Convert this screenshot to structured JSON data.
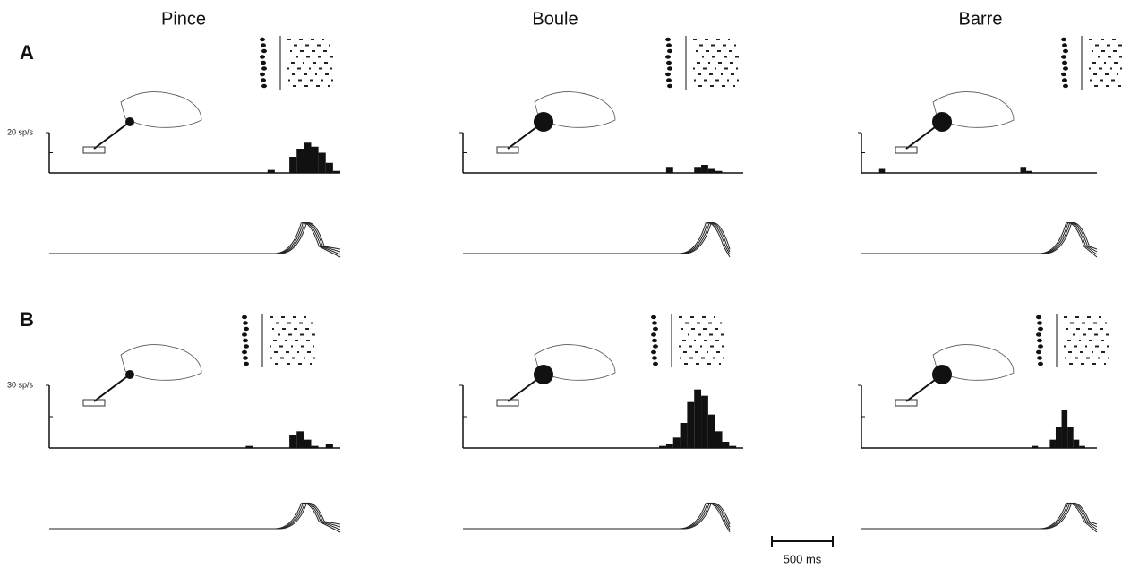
{
  "columns": [
    "Pince",
    "Boule",
    "Barre"
  ],
  "rows": [
    {
      "label": "A",
      "scale": {
        "value": 20,
        "label": "20 sp/s"
      },
      "histograms": [
        [
          0,
          0,
          0,
          0,
          0,
          0,
          0,
          0,
          0,
          0,
          0,
          0,
          0,
          0,
          0,
          0,
          0,
          0,
          0,
          0,
          0,
          0,
          0,
          0,
          0,
          0,
          0,
          0,
          0,
          0,
          1.5,
          0,
          0,
          8,
          12,
          15,
          13,
          10,
          5,
          1
        ],
        [
          0,
          0,
          0,
          0,
          0,
          0,
          0,
          0,
          0,
          0,
          0,
          0,
          0,
          0,
          0,
          0,
          0,
          0,
          0,
          0,
          0,
          0,
          0,
          0,
          0,
          0,
          0,
          0,
          0,
          3,
          0,
          0,
          0,
          3,
          4,
          2,
          1,
          0,
          0,
          0
        ],
        [
          0,
          0,
          0,
          2,
          0,
          0,
          0,
          0,
          0,
          0,
          0,
          0,
          0,
          0,
          0,
          0,
          0,
          0,
          0,
          0,
          0,
          0,
          0,
          0,
          0,
          0,
          0,
          3,
          1,
          0,
          0,
          0,
          0,
          0,
          0,
          0,
          0,
          0,
          0,
          0
        ]
      ]
    },
    {
      "label": "B",
      "scale": {
        "value": 30,
        "label": "30 sp/s"
      },
      "histograms": [
        [
          0,
          0,
          0,
          0,
          0,
          0,
          0,
          0,
          0,
          0,
          0,
          0,
          0,
          0,
          0,
          0,
          0,
          0,
          0,
          0,
          0,
          0,
          0,
          0,
          0,
          0,
          0,
          1,
          0,
          0,
          0,
          0,
          0,
          6,
          8,
          4,
          1,
          0,
          2,
          0
        ],
        [
          0,
          0,
          0,
          0,
          0,
          0,
          0,
          0,
          0,
          0,
          0,
          0,
          0,
          0,
          0,
          0,
          0,
          0,
          0,
          0,
          0,
          0,
          0,
          0,
          0,
          0,
          0,
          0,
          1,
          2,
          5,
          12,
          22,
          28,
          25,
          16,
          8,
          3,
          1,
          0
        ],
        [
          0,
          0,
          0,
          0,
          0,
          0,
          0,
          0,
          0,
          0,
          0,
          0,
          0,
          0,
          0,
          0,
          0,
          0,
          0,
          0,
          0,
          0,
          0,
          0,
          0,
          0,
          0,
          0,
          0,
          1,
          0,
          0,
          4,
          10,
          18,
          10,
          4,
          1,
          0,
          0
        ]
      ]
    }
  ],
  "time_scale": "500 ms"
}
